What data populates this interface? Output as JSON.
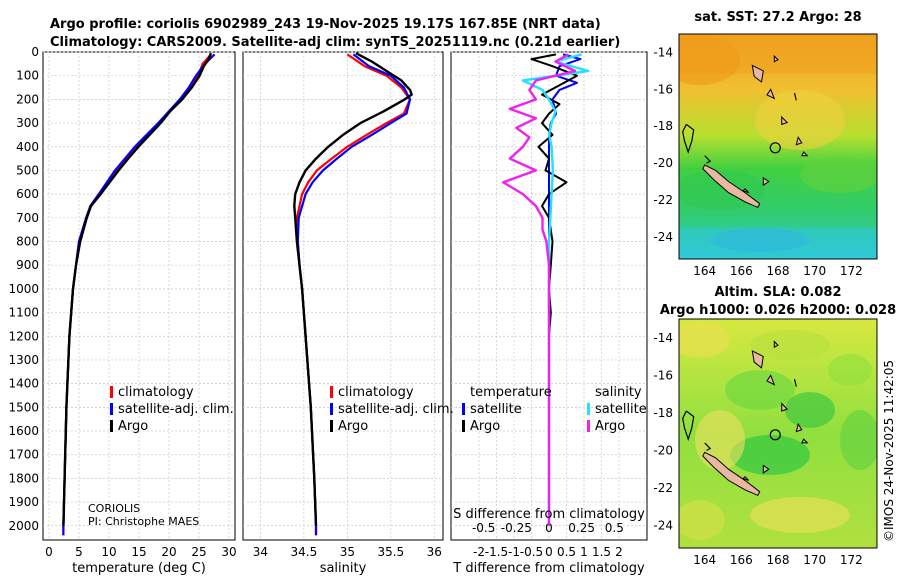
{
  "header": {
    "line1": "Argo profile: coriolis 6902989_243 19-Nov-2025 19.17S 167.85E (NRT data)",
    "line2": "Climatology: CARS2009. Satellite-adj clim: synTS_20251119.nc (0.21d earlier)"
  },
  "footer": {
    "timestamp": "©IMOS 24-Nov-2025 11:42:05"
  },
  "colors": {
    "climatology": "#ff0000",
    "satellite": "#0000ff",
    "argo": "#000000",
    "sat_salinity": "#22e0ff",
    "argo_salinity": "#ee22ee",
    "land": "#e8b8a0"
  },
  "chart_data": [
    {
      "type": "line",
      "id": "temperature",
      "xlabel": "temperature (deg C)",
      "ylabel": "",
      "xlim": [
        -1,
        31
      ],
      "ylim": [
        0,
        2060
      ],
      "x_ticks": [
        0,
        5,
        10,
        15,
        20,
        25,
        30
      ],
      "y_ticks": [
        0,
        100,
        200,
        300,
        400,
        500,
        600,
        700,
        800,
        900,
        1000,
        1100,
        1200,
        1300,
        1400,
        1500,
        1600,
        1700,
        1800,
        1900,
        2000
      ],
      "legend": [
        "climatology",
        "satellite-adj. clim.",
        "Argo"
      ],
      "annotation": [
        "CORIOLIS",
        "PI: Christophe MAES"
      ],
      "series": [
        {
          "name": "climatology",
          "depth": [
            10,
            50,
            100,
            150,
            200,
            300,
            400,
            500,
            600,
            650,
            700,
            800,
            1000,
            1200,
            1500,
            1800,
            2000,
            2040
          ],
          "values": [
            27.0,
            25.6,
            24.9,
            23.6,
            22.0,
            18.4,
            14.5,
            11.2,
            8.3,
            6.9,
            6.2,
            5.0,
            4.0,
            3.4,
            2.9,
            2.6,
            2.4,
            2.4
          ]
        },
        {
          "name": "satellite-adj. clim.",
          "depth": [
            10,
            50,
            100,
            150,
            200,
            300,
            400,
            500,
            600,
            650,
            700,
            800,
            1000,
            1200,
            1500,
            1800,
            2000,
            2040
          ],
          "values": [
            27.6,
            26.0,
            24.5,
            23.3,
            21.8,
            18.2,
            14.3,
            11.0,
            8.3,
            6.9,
            6.2,
            5.0,
            4.0,
            3.4,
            2.9,
            2.6,
            2.4,
            2.4
          ]
        },
        {
          "name": "Argo",
          "depth": [
            5,
            30,
            60,
            100,
            150,
            200,
            250,
            300,
            400,
            450,
            500,
            600,
            650,
            700,
            800,
            900,
            1000,
            1200,
            1500,
            1800,
            2000
          ],
          "values": [
            27.0,
            26.6,
            25.8,
            25.1,
            23.8,
            22.2,
            20.2,
            18.6,
            14.9,
            13.2,
            11.6,
            8.6,
            7.0,
            6.3,
            5.2,
            4.5,
            4.0,
            3.4,
            2.9,
            2.6,
            2.4
          ]
        }
      ]
    },
    {
      "type": "line",
      "id": "salinity",
      "xlabel": "salinity",
      "xlim": [
        33.8,
        36.1
      ],
      "ylim": [
        0,
        2060
      ],
      "x_ticks": [
        34,
        34.5,
        35,
        35.5,
        36
      ],
      "legend": [
        "climatology",
        "satellite-adj. clim.",
        "Argo"
      ],
      "series": [
        {
          "name": "climatology",
          "depth": [
            10,
            60,
            100,
            150,
            200,
            260,
            300,
            350,
            400,
            450,
            500,
            550,
            600,
            700,
            800,
            900,
            1000,
            1200,
            1500,
            1800,
            2000,
            2040
          ],
          "values": [
            35.0,
            35.2,
            35.45,
            35.62,
            35.72,
            35.65,
            35.45,
            35.22,
            35.0,
            34.82,
            34.65,
            34.55,
            34.48,
            34.42,
            34.43,
            34.45,
            34.48,
            34.52,
            34.58,
            34.62,
            34.64,
            34.64
          ]
        },
        {
          "name": "satellite-adj. clim.",
          "depth": [
            10,
            60,
            100,
            150,
            200,
            260,
            300,
            350,
            400,
            450,
            500,
            550,
            600,
            700,
            800,
            900,
            1000,
            1200,
            1500,
            1800,
            2000,
            2040
          ],
          "values": [
            35.07,
            35.25,
            35.5,
            35.65,
            35.72,
            35.68,
            35.5,
            35.28,
            35.05,
            34.88,
            34.72,
            34.6,
            34.52,
            34.44,
            34.43,
            34.45,
            34.48,
            34.52,
            34.58,
            34.62,
            34.64,
            34.64
          ]
        },
        {
          "name": "Argo",
          "depth": [
            5,
            40,
            80,
            120,
            160,
            180,
            200,
            250,
            300,
            350,
            400,
            450,
            500,
            550,
            600,
            650,
            700,
            800,
            900,
            1000,
            1200,
            1500,
            1800,
            2000
          ],
          "values": [
            35.1,
            35.28,
            35.45,
            35.62,
            35.72,
            35.74,
            35.66,
            35.42,
            35.15,
            34.95,
            34.78,
            34.64,
            34.52,
            34.45,
            34.4,
            34.39,
            34.4,
            34.42,
            34.45,
            34.48,
            34.52,
            34.58,
            34.62,
            34.64
          ]
        }
      ]
    },
    {
      "type": "line",
      "id": "difference",
      "xlabel": "T difference from climatology",
      "top_label": "S difference from climatology",
      "xlim": [
        -2.8,
        2.8
      ],
      "ylim": [
        0,
        2060
      ],
      "x_ticks": [
        -2,
        -1.5,
        -1,
        -0.5,
        0,
        0.5,
        1,
        1.5,
        2
      ],
      "x_tick_labels": [
        "-2",
        "-1.5",
        "-1",
        "-0.5",
        "0",
        "0.5",
        "1",
        "1.5",
        "2"
      ],
      "top_ticks": [
        -0.5,
        -0.25,
        0,
        0.25,
        0.5
      ],
      "top_tick_labels": [
        "-0.5",
        "-0.25",
        "0",
        "0.25",
        "0.5"
      ],
      "legend_temperature": {
        "title": "temperature",
        "items": [
          "satellite",
          "Argo"
        ]
      },
      "legend_salinity": {
        "title": "salinity",
        "items": [
          "satellite",
          "Argo"
        ]
      },
      "series": [
        {
          "name": "temperature satellite",
          "depth": [
            10,
            30,
            60,
            100,
            130,
            160,
            200,
            260,
            300,
            350,
            400,
            500,
            600,
            700,
            800,
            1000,
            1200,
            1500,
            2000
          ],
          "values": [
            0.4,
            0.9,
            0.3,
            0.2,
            0.8,
            0.3,
            0.1,
            0.2,
            0.05,
            0.0,
            0.0,
            0.0,
            0.0,
            0.0,
            0.0,
            0.0,
            0.0,
            0.0,
            0.0
          ]
        },
        {
          "name": "temperature Argo",
          "depth": [
            10,
            30,
            60,
            100,
            140,
            180,
            220,
            260,
            300,
            350,
            400,
            450,
            500,
            550,
            600,
            650,
            700,
            800,
            900,
            1000,
            1100,
            1200,
            1500,
            2000
          ],
          "values": [
            0.2,
            -0.5,
            0.1,
            0.8,
            0.3,
            -0.2,
            0.3,
            0.0,
            -0.2,
            0.1,
            -0.3,
            0.0,
            -0.1,
            0.5,
            0.0,
            -0.2,
            0.0,
            0.1,
            0.05,
            0.0,
            0.05,
            0.0,
            0.0,
            0.0
          ]
        },
        {
          "name": "salinity satellite",
          "depth": [
            10,
            40,
            80,
            120,
            160,
            200,
            250,
            300,
            350,
            400,
            500,
            600,
            700,
            800,
            1000,
            1200,
            1500,
            2000
          ],
          "values": [
            0.25,
            0.05,
            0.3,
            -0.2,
            -0.05,
            0.0,
            0.05,
            0.02,
            0.0,
            0.02,
            0.03,
            0.02,
            0.01,
            0.0,
            0.0,
            0.0,
            0.0,
            0.0
          ]
        },
        {
          "name": "salinity Argo",
          "depth": [
            10,
            40,
            80,
            120,
            160,
            200,
            240,
            280,
            320,
            360,
            400,
            450,
            500,
            550,
            600,
            650,
            700,
            750,
            800,
            900,
            1000,
            1200,
            1500,
            2000
          ],
          "values": [
            0.15,
            0.05,
            0.2,
            -0.1,
            -0.15,
            -0.1,
            -0.3,
            -0.1,
            -0.25,
            -0.15,
            -0.2,
            -0.3,
            -0.1,
            -0.35,
            -0.2,
            -0.1,
            -0.05,
            -0.05,
            -0.02,
            0.0,
            0.0,
            0.0,
            0.0,
            0.0
          ]
        }
      ]
    },
    {
      "type": "heatmap",
      "id": "sst_map",
      "title": "sat. SST: 27.2 Argo: 28",
      "x_ticks": [
        164,
        166,
        168,
        170,
        172
      ],
      "y_ticks": [
        -14,
        -16,
        -18,
        -20,
        -22,
        -24
      ],
      "xlim": [
        162.6,
        173.4
      ],
      "ylim": [
        -25.2,
        -13.0
      ],
      "marker": {
        "lon": 167.85,
        "lat": -19.17
      }
    },
    {
      "type": "heatmap",
      "id": "sla_map",
      "title1": "Altim. SLA: 0.082",
      "title2": "Argo h1000: 0.026 h2000: 0.028",
      "x_ticks": [
        164,
        166,
        168,
        170,
        172
      ],
      "y_ticks": [
        -14,
        -16,
        -18,
        -20,
        -22,
        -24
      ],
      "xlim": [
        162.6,
        173.4
      ],
      "ylim": [
        -25.2,
        -13.0
      ],
      "marker": {
        "lon": 167.85,
        "lat": -19.17
      }
    }
  ]
}
